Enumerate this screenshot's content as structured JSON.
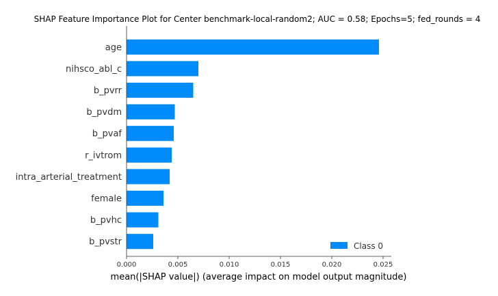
{
  "chart_data": {
    "type": "bar",
    "orientation": "horizontal",
    "title": "SHAP Feature Importance Plot for Center benchmark-local-random2; AUC = 0.58; Epochs=5; fed_rounds = 4",
    "xlabel": "mean(|SHAP value|) (average impact on model output magnitude)",
    "ylabel": "",
    "categories": [
      "age",
      "nihsco_abl_c",
      "b_pvrr",
      "b_pvdm",
      "b_pvaf",
      "r_ivtrom",
      "intra_arterial_treatment",
      "female",
      "b_pvhc",
      "b_pvstr"
    ],
    "series": [
      {
        "name": "Class 0",
        "values": [
          0.0246,
          0.007,
          0.0065,
          0.0047,
          0.0046,
          0.0044,
          0.0042,
          0.0036,
          0.0031,
          0.0026
        ]
      }
    ],
    "xlim": [
      0,
      0.0258
    ],
    "xticks": [
      0.0,
      0.005,
      0.01,
      0.015,
      0.02,
      0.025
    ],
    "xtick_labels": [
      "0.000",
      "0.005",
      "0.010",
      "0.015",
      "0.020",
      "0.025"
    ],
    "grid": false,
    "legend_position": "bottom-right",
    "colors": {
      "bar": "#008bfb",
      "axis": "#333333"
    }
  }
}
